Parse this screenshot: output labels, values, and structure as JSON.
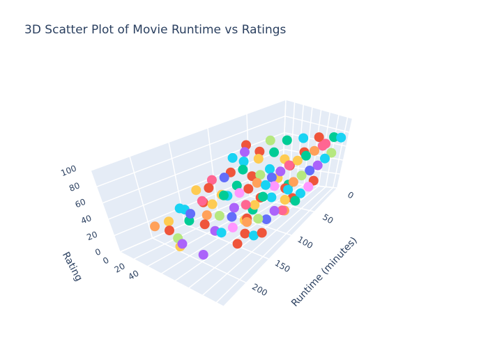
{
  "chart_data": {
    "type": "scatter3d",
    "title": "3D Scatter Plot of Movie Runtime vs Ratings",
    "x_axis": {
      "title": "Runtime (minutes)",
      "ticks": [
        "0",
        "50",
        "100",
        "150",
        "200"
      ],
      "range": [
        0,
        250
      ]
    },
    "y_axis": {
      "title": "",
      "ticks": [
        "0",
        "20",
        "40"
      ],
      "range": [
        0,
        150
      ]
    },
    "z_axis": {
      "title": "Rating",
      "ticks": [
        "0",
        "20",
        "40",
        "60",
        "80",
        "100"
      ],
      "range": [
        0,
        100
      ]
    },
    "grid": true,
    "legend": "none",
    "colors": [
      "#636efa",
      "#EF553B",
      "#00cc96",
      "#ab63fa",
      "#FFA15A",
      "#19d3f3",
      "#FF6692",
      "#B6E880",
      "#FF97FF",
      "#FECB52"
    ],
    "points": [
      [
        240,
        60,
        55,
        4
      ],
      [
        230,
        70,
        50,
        1
      ],
      [
        225,
        75,
        40,
        7
      ],
      [
        225,
        80,
        35,
        3
      ],
      [
        220,
        70,
        25,
        9
      ],
      [
        210,
        95,
        20,
        3
      ],
      [
        215,
        55,
        48,
        9
      ],
      [
        200,
        60,
        60,
        5
      ],
      [
        195,
        70,
        55,
        0
      ],
      [
        190,
        85,
        45,
        1
      ],
      [
        190,
        60,
        40,
        2
      ],
      [
        185,
        95,
        38,
        3
      ],
      [
        180,
        80,
        50,
        4
      ],
      [
        180,
        100,
        35,
        5
      ],
      [
        175,
        70,
        62,
        6
      ],
      [
        170,
        90,
        48,
        7
      ],
      [
        170,
        110,
        40,
        8
      ],
      [
        165,
        75,
        55,
        9
      ],
      [
        160,
        100,
        45,
        0
      ],
      [
        160,
        120,
        30,
        1
      ],
      [
        155,
        85,
        65,
        2
      ],
      [
        150,
        95,
        50,
        3
      ],
      [
        150,
        115,
        38,
        4
      ],
      [
        145,
        80,
        58,
        5
      ],
      [
        140,
        105,
        52,
        6
      ],
      [
        140,
        125,
        40,
        7
      ],
      [
        135,
        90,
        60,
        8
      ],
      [
        130,
        110,
        48,
        9
      ],
      [
        130,
        130,
        35,
        0
      ],
      [
        125,
        95,
        62,
        1
      ],
      [
        120,
        115,
        55,
        2
      ],
      [
        120,
        135,
        42,
        3
      ],
      [
        115,
        100,
        66,
        4
      ],
      [
        110,
        120,
        50,
        5
      ],
      [
        110,
        140,
        38,
        6
      ],
      [
        105,
        95,
        70,
        7
      ],
      [
        100,
        115,
        58,
        8
      ],
      [
        100,
        135,
        45,
        9
      ],
      [
        95,
        105,
        64,
        0
      ],
      [
        90,
        125,
        52,
        1
      ],
      [
        90,
        145,
        40,
        2
      ],
      [
        85,
        110,
        68,
        3
      ],
      [
        80,
        130,
        56,
        4
      ],
      [
        80,
        145,
        44,
        5
      ],
      [
        75,
        115,
        72,
        6
      ],
      [
        70,
        135,
        60,
        7
      ],
      [
        70,
        150,
        48,
        8
      ],
      [
        65,
        120,
        74,
        9
      ],
      [
        60,
        140,
        62,
        0
      ],
      [
        60,
        150,
        50,
        1
      ],
      [
        55,
        125,
        76,
        2
      ],
      [
        50,
        145,
        64,
        3
      ],
      [
        45,
        130,
        78,
        4
      ],
      [
        40,
        148,
        68,
        5
      ],
      [
        35,
        135,
        80,
        6
      ],
      [
        30,
        150,
        70,
        7
      ],
      [
        120,
        60,
        70,
        1
      ],
      [
        110,
        70,
        72,
        2
      ],
      [
        100,
        60,
        75,
        5
      ],
      [
        90,
        75,
        78,
        9
      ],
      [
        80,
        65,
        80,
        1
      ],
      [
        70,
        80,
        78,
        2
      ],
      [
        130,
        60,
        68,
        0
      ],
      [
        140,
        50,
        66,
        6
      ],
      [
        150,
        55,
        62,
        1
      ],
      [
        160,
        45,
        60,
        9
      ],
      [
        100,
        40,
        74,
        5
      ],
      [
        90,
        50,
        80,
        3
      ],
      [
        80,
        40,
        82,
        1
      ],
      [
        60,
        60,
        84,
        7
      ],
      [
        50,
        80,
        84,
        2
      ],
      [
        40,
        100,
        86,
        5
      ],
      [
        30,
        120,
        86,
        1
      ],
      [
        20,
        140,
        84,
        2
      ],
      [
        15,
        150,
        82,
        5
      ],
      [
        25,
        130,
        76,
        6
      ],
      [
        45,
        110,
        72,
        1
      ],
      [
        65,
        95,
        70,
        9
      ],
      [
        85,
        90,
        66,
        5
      ],
      [
        105,
        80,
        64,
        1
      ],
      [
        125,
        75,
        60,
        2
      ],
      [
        145,
        70,
        56,
        9
      ],
      [
        165,
        60,
        52,
        1
      ],
      [
        185,
        50,
        48,
        5
      ],
      [
        135,
        100,
        30,
        1
      ],
      [
        115,
        90,
        28,
        2
      ],
      [
        95,
        130,
        26,
        4
      ],
      [
        75,
        125,
        30,
        1
      ],
      [
        155,
        130,
        28,
        5
      ],
      [
        175,
        120,
        25,
        1
      ],
      [
        120,
        120,
        72,
        5
      ],
      [
        60,
        100,
        60,
        1
      ],
      [
        70,
        110,
        42,
        2
      ],
      [
        110,
        100,
        44,
        1
      ],
      [
        130,
        90,
        22,
        9
      ],
      [
        150,
        140,
        32,
        1
      ],
      [
        100,
        140,
        60,
        5
      ],
      [
        80,
        100,
        54,
        9
      ]
    ]
  }
}
